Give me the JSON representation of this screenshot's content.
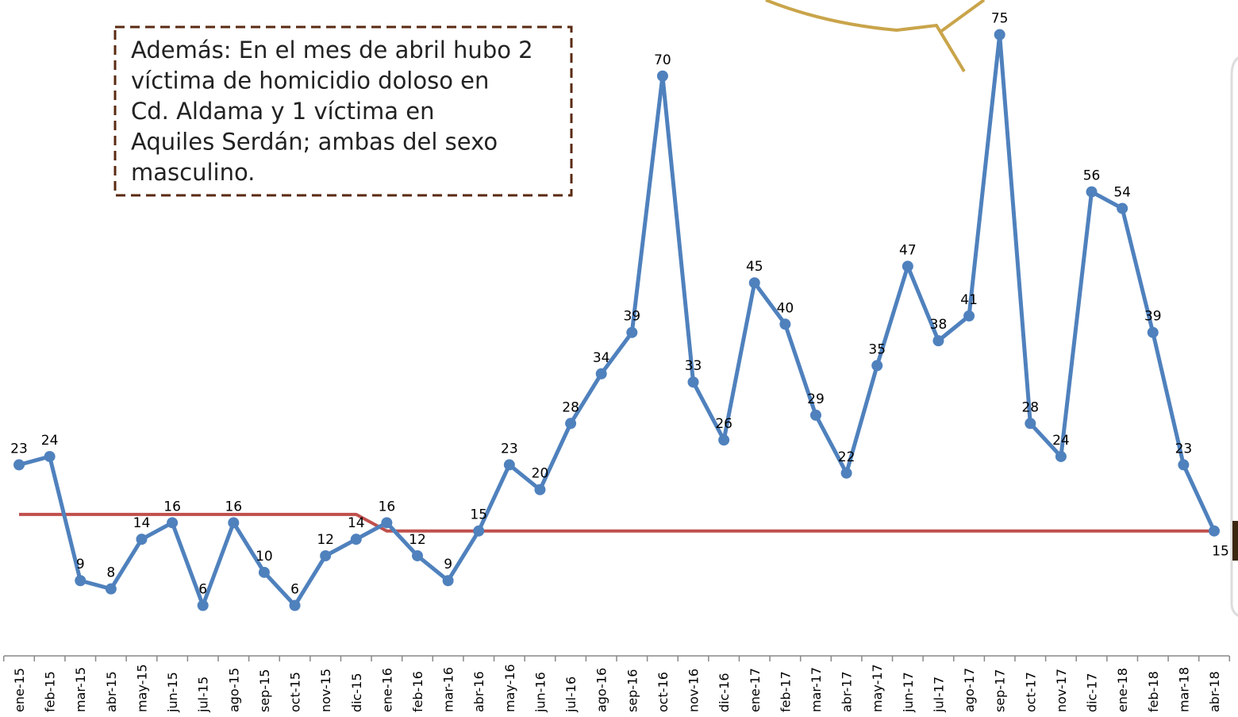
{
  "chart_data": {
    "type": "line",
    "annotation": [
      "Además: En el mes de abril hubo 2",
      "víctima de homicidio doloso en",
      "Cd. Aldama  y 1 víctima en",
      "Aquiles Serdán; ambas del sexo",
      "masculino."
    ],
    "categories": [
      "ene-15",
      "feb-15",
      "mar-15",
      "abr-15",
      "may-15",
      "jun-15",
      "jul-15",
      "ago-15",
      "sep-15",
      "oct-15",
      "nov-15",
      "dic-15",
      "ene-16",
      "feb-16",
      "mar-16",
      "abr-16",
      "may-16",
      "jun-16",
      "jul-16",
      "ago-16",
      "sep-16",
      "oct-16",
      "nov-16",
      "dic-16",
      "ene-17",
      "feb-17",
      "mar-17",
      "abr-17",
      "may-17",
      "jun-17",
      "jul-17",
      "ago-17",
      "sep-17",
      "oct-17",
      "nov-17",
      "dic-17",
      "ene-18",
      "feb-18",
      "mar-18",
      "abr-18"
    ],
    "series": [
      {
        "color": "#4f81bd",
        "markers": true,
        "data_labels": true,
        "values": [
          23,
          24,
          9,
          8,
          14,
          16,
          6,
          16,
          10,
          6,
          12,
          14,
          16,
          12,
          9,
          15,
          23,
          20,
          28,
          34,
          39,
          70,
          33,
          26,
          45,
          40,
          29,
          22,
          35,
          47,
          38,
          41,
          75,
          28,
          24,
          56,
          54,
          39,
          23,
          15
        ]
      },
      {
        "color": "#c0504d",
        "markers": false,
        "data_labels": false,
        "values": [
          17,
          17,
          17,
          17,
          17,
          17,
          17,
          17,
          17,
          17,
          17,
          17,
          15,
          15,
          15,
          15,
          15,
          15,
          15,
          15,
          15,
          15,
          15,
          15,
          15,
          15,
          15,
          15,
          15,
          15,
          15,
          15,
          15,
          15,
          15,
          15,
          15,
          15,
          15,
          15
        ]
      }
    ],
    "ylim": [
      0,
      79
    ]
  }
}
